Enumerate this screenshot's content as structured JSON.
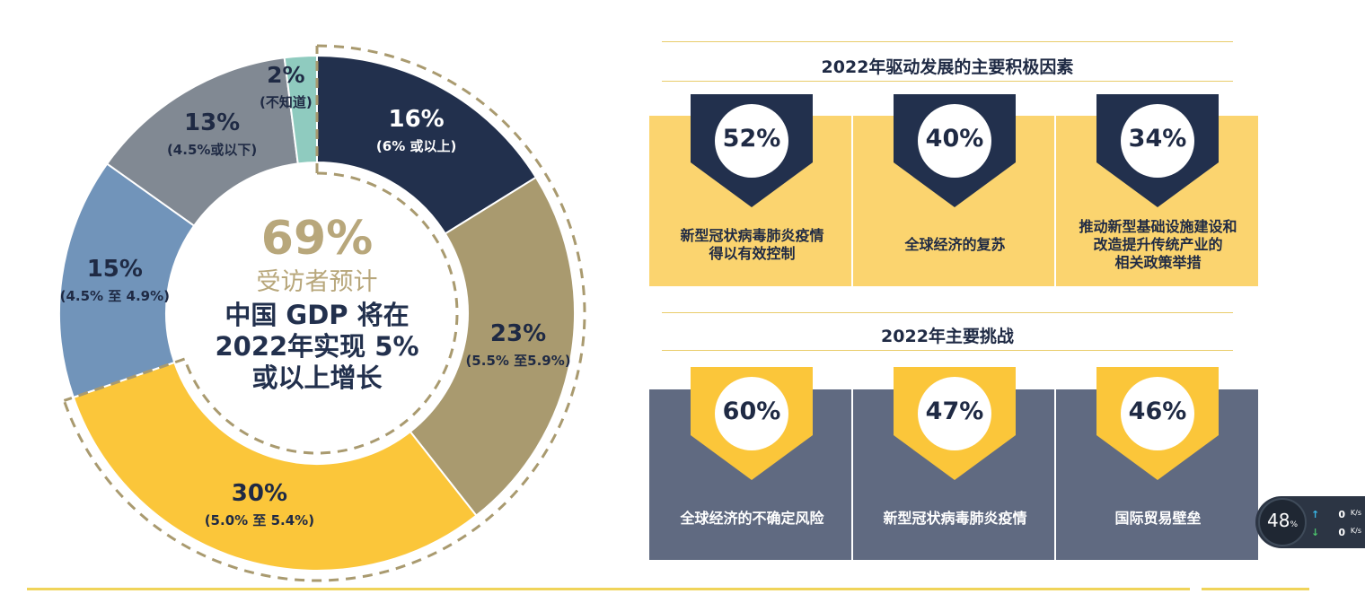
{
  "chart_data": {
    "type": "pie",
    "slices": [
      {
        "pct": "16%",
        "sub": "(6% 或以上)",
        "value": 16,
        "color": "#22304d",
        "text_color": "#ffffff"
      },
      {
        "pct": "23%",
        "sub": "(5.5% 至5.9%)",
        "value": 23,
        "color": "#a99a6f",
        "text_color": "#1f2a44"
      },
      {
        "pct": "30%",
        "sub": "(5.0% 至 5.4%)",
        "value": 30,
        "color": "#fbc63a",
        "text_color": "#1f2a44"
      },
      {
        "pct": "15%",
        "sub": "(4.5% 至 4.9%)",
        "value": 15,
        "color": "#7194ba",
        "text_color": "#1f2a44"
      },
      {
        "pct": "13%",
        "sub": "(4.5%或以下)",
        "value": 13,
        "color": "#818993",
        "text_color": "#1f2a44"
      },
      {
        "pct": "2%",
        "sub": "(不知道)",
        "value": 2,
        "color": "#8fcbbf",
        "text_color": "#1f2a44"
      }
    ],
    "highlight_total": "69%",
    "highlight_slices": [
      "16%",
      "23%",
      "30%"
    ]
  },
  "center": {
    "pct": "69%",
    "respondents": "受访者预计",
    "line1": "中国 GDP 将在",
    "line2": "2022年实现 5%",
    "line3": "或以上增长"
  },
  "positive": {
    "title": "2022年驱动发展的主要积极因素",
    "items": [
      {
        "pct": "52%",
        "label": [
          "新型冠状病毒肺炎疫情",
          "得以有效控制"
        ]
      },
      {
        "pct": "40%",
        "label": [
          "全球经济的复苏"
        ]
      },
      {
        "pct": "34%",
        "label": [
          "推动新型基础设施建设和",
          "改造提升传统产业的",
          "相关政策举措"
        ]
      }
    ]
  },
  "challenges": {
    "title": "2022年主要挑战",
    "items": [
      {
        "pct": "60%",
        "label": [
          "全球经济的不确定风险"
        ]
      },
      {
        "pct": "47%",
        "label": [
          "新型冠状病毒肺炎疫情"
        ]
      },
      {
        "pct": "46%",
        "label": [
          "国际贸易壁垒"
        ]
      }
    ]
  },
  "colors": {
    "navy": "#22304d",
    "gold": "#fbd46f",
    "slate": "#606a81",
    "badge_yellow": "#fbc63a",
    "accent": "#b8a77b"
  },
  "network_widget": {
    "cpu": "48",
    "cpu_unit": "%",
    "up": "0",
    "down": "0",
    "unit": "K/s"
  }
}
